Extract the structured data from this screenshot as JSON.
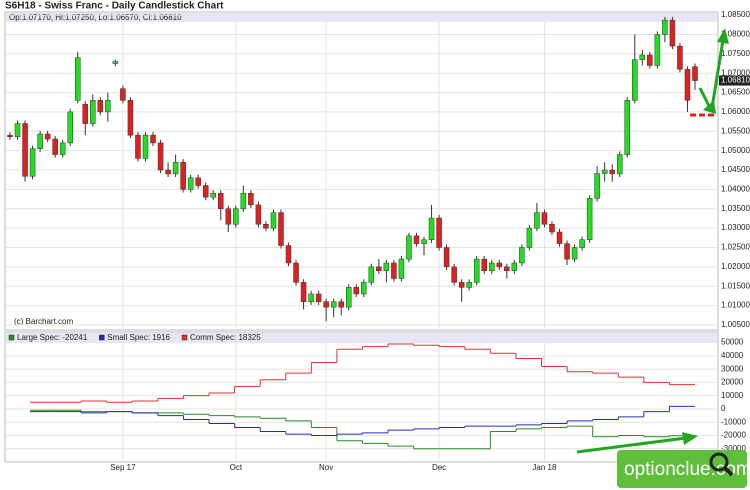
{
  "chart_data": [
    {
      "type": "candlestick",
      "title": "S6H18 - Swiss Franc - Daily Candlestick Chart",
      "header": "Op:1.07170, Hi:1.07250, Lo:1.06570, Cl:1.06810",
      "source": "(c) Barchart.com",
      "categories": [
        null,
        null,
        null,
        null,
        null,
        null,
        null,
        null,
        null,
        null,
        null,
        null,
        null,
        null,
        null,
        "Sep 17",
        null,
        null,
        null,
        null,
        null,
        null,
        null,
        null,
        null,
        null,
        null,
        null,
        null,
        null,
        "Oct",
        null,
        null,
        null,
        null,
        null,
        null,
        null,
        null,
        null,
        null,
        null,
        "Nov",
        null,
        null,
        null,
        null,
        null,
        null,
        null,
        null,
        null,
        null,
        null,
        null,
        null,
        null,
        "Dec",
        null,
        null,
        null,
        null,
        null,
        null,
        null,
        null,
        null,
        null,
        null,
        null,
        null,
        "Jan 18",
        null,
        null,
        null,
        null,
        null,
        null,
        null,
        null,
        null,
        null,
        null,
        null,
        null,
        null,
        null,
        null,
        null,
        null,
        null,
        null
      ],
      "open": [
        1.054,
        1.0536,
        1.057,
        1.0434,
        1.0505,
        1.0543,
        1.053,
        1.049,
        1.052,
        1.063,
        1.062,
        1.057,
        1.063,
        1.06,
        1.0725,
        1.066,
        1.063,
        1.054,
        1.048,
        1.054,
        1.052,
        1.045,
        1.044,
        1.047,
        1.04,
        1.043,
        1.041,
        1.038,
        1.039,
        1.035,
        1.031,
        1.035,
        1.039,
        1.036,
        1.031,
        1.03,
        1.034,
        1.0255,
        1.021,
        1.016,
        1.011,
        1.013,
        1.011,
        1.0096,
        1.011,
        1.0096,
        1.0147,
        1.013,
        1.016,
        1.02,
        1.019,
        1.021,
        1.017,
        1.022,
        1.028,
        1.026,
        1.027,
        1.0326,
        1.025,
        1.02,
        1.016,
        1.0147,
        1.016,
        1.022,
        1.019,
        1.021,
        1.02,
        1.019,
        1.021,
        1.025,
        1.03,
        1.034,
        1.031,
        1.029,
        1.026,
        1.022,
        1.025,
        1.027,
        1.0377,
        1.0441,
        1.045,
        1.044,
        1.049,
        1.063,
        1.0735,
        1.0747,
        1.072,
        1.08,
        1.0837,
        1.077,
        1.071,
        1.0717
      ],
      "high": [
        1.0548,
        1.0578,
        1.0578,
        1.0513,
        1.0551,
        1.0551,
        1.0538,
        1.0528,
        1.0608,
        1.0755,
        1.0628,
        1.0645,
        1.0638,
        1.065,
        1.0735,
        1.0668,
        1.0638,
        1.0548,
        1.0548,
        1.0548,
        1.0528,
        1.047,
        1.049,
        1.0478,
        1.0438,
        1.0438,
        1.0418,
        1.0398,
        1.0398,
        1.0358,
        1.0358,
        1.041,
        1.0398,
        1.0368,
        1.0318,
        1.0348,
        1.0348,
        1.0263,
        1.0218,
        1.0168,
        1.0138,
        1.0138,
        1.0118,
        1.0118,
        1.0118,
        1.0155,
        1.0155,
        1.0168,
        1.0208,
        1.022,
        1.0218,
        1.0218,
        1.0228,
        1.0288,
        1.0288,
        1.0278,
        1.036,
        1.0334,
        1.0258,
        1.0208,
        1.0168,
        1.0168,
        1.0228,
        1.0228,
        1.0218,
        1.0218,
        1.0208,
        1.0218,
        1.0258,
        1.0308,
        1.0365,
        1.0348,
        1.0318,
        1.0298,
        1.0268,
        1.0258,
        1.0278,
        1.0385,
        1.046,
        1.047,
        1.0465,
        1.0498,
        1.0638,
        1.08,
        1.076,
        1.0755,
        1.0808,
        1.0845,
        1.0845,
        1.0778,
        1.0718,
        1.0725
      ],
      "low": [
        1.0528,
        1.0528,
        1.042,
        1.0426,
        1.0497,
        1.0522,
        1.0482,
        1.0482,
        1.0512,
        1.0622,
        1.054,
        1.0562,
        1.0592,
        1.0575,
        1.0718,
        1.0622,
        1.0532,
        1.0472,
        1.0472,
        1.0512,
        1.0442,
        1.0432,
        1.0432,
        1.0392,
        1.0392,
        1.0402,
        1.0372,
        1.0372,
        1.032,
        1.029,
        1.0302,
        1.0342,
        1.0352,
        1.0302,
        1.0292,
        1.0292,
        1.0247,
        1.0202,
        1.0152,
        1.009,
        1.0102,
        1.0102,
        1.006,
        1.007,
        1.0075,
        1.0088,
        1.0122,
        1.0122,
        1.0152,
        1.0182,
        1.016,
        1.0162,
        1.0162,
        1.0212,
        1.0252,
        1.023,
        1.0262,
        1.0242,
        1.0192,
        1.0152,
        1.011,
        1.0139,
        1.0152,
        1.0182,
        1.0182,
        1.0192,
        1.017,
        1.0182,
        1.0202,
        1.0242,
        1.0292,
        1.0302,
        1.0282,
        1.0252,
        1.0205,
        1.0212,
        1.0242,
        1.0262,
        1.0369,
        1.042,
        1.042,
        1.0432,
        1.0482,
        1.0622,
        1.072,
        1.0712,
        1.0712,
        1.078,
        1.0762,
        1.0702,
        1.06,
        1.0657
      ],
      "close": [
        1.0536,
        1.057,
        1.0434,
        1.0505,
        1.0543,
        1.053,
        1.049,
        1.052,
        1.06,
        1.074,
        1.057,
        1.063,
        1.06,
        1.063,
        1.073,
        1.063,
        1.054,
        1.048,
        1.054,
        1.052,
        1.045,
        1.044,
        1.047,
        1.04,
        1.043,
        1.041,
        1.038,
        1.039,
        1.035,
        1.031,
        1.035,
        1.039,
        1.036,
        1.031,
        1.03,
        1.034,
        1.0255,
        1.021,
        1.016,
        1.011,
        1.013,
        1.011,
        1.0096,
        1.011,
        1.0096,
        1.0147,
        1.013,
        1.016,
        1.02,
        1.019,
        1.021,
        1.017,
        1.022,
        1.028,
        1.026,
        1.027,
        1.0326,
        1.025,
        1.02,
        1.016,
        1.0147,
        1.016,
        1.022,
        1.019,
        1.021,
        1.02,
        1.019,
        1.021,
        1.025,
        1.03,
        1.034,
        1.031,
        1.029,
        1.026,
        1.022,
        1.025,
        1.027,
        1.0377,
        1.0441,
        1.045,
        1.044,
        1.049,
        1.063,
        1.0735,
        1.0747,
        1.072,
        1.08,
        1.0837,
        1.077,
        1.071,
        1.063,
        1.0681
      ],
      "up_color": "#22dd22",
      "down_color": "#e02020",
      "ylim": [
        1.0037,
        1.0858
      ],
      "yticks": [
        {
          "value": 1.005,
          "label": "1.00500"
        },
        {
          "value": 1.01,
          "label": "1.01000"
        },
        {
          "value": 1.015,
          "label": "1.01500"
        },
        {
          "value": 1.02,
          "label": "1.02000"
        },
        {
          "value": 1.025,
          "label": "1.02500"
        },
        {
          "value": 1.03,
          "label": "1.03000"
        },
        {
          "value": 1.035,
          "label": "1.03500"
        },
        {
          "value": 1.04,
          "label": "1.04000"
        },
        {
          "value": 1.045,
          "label": "1.04500"
        },
        {
          "value": 1.05,
          "label": "1.05000"
        },
        {
          "value": 1.055,
          "label": "1.05500"
        },
        {
          "value": 1.06,
          "label": "1.06000"
        },
        {
          "value": 1.065,
          "label": "1.06500"
        },
        {
          "value": 1.07,
          "label": "1.07000"
        },
        {
          "value": 1.075,
          "label": "1.07500"
        },
        {
          "value": 1.08,
          "label": "1.08000"
        },
        {
          "value": 1.085,
          "label": "1.08500"
        }
      ],
      "last_price": {
        "value": 1.0681,
        "label": "1.06810"
      },
      "grid": true
    },
    {
      "type": "line",
      "series": [
        {
          "name": "Large Spec: -20241",
          "color": "#2a8a2a",
          "values": [
            -1000,
            -1000,
            -2000,
            -2000,
            -3000,
            -3000,
            -4000,
            -5000,
            -6000,
            -7000,
            -9000,
            -14000,
            -24000,
            -26000,
            -28000,
            -30000,
            -30000,
            -30000,
            -17000,
            -15000,
            -14000,
            -13000,
            -21000,
            -20000,
            -21000,
            -20241
          ]
        },
        {
          "name": "Small Spec: 1916",
          "color": "#2a2ab0",
          "values": [
            -2000,
            -2000,
            -3000,
            -2000,
            -3000,
            -5000,
            -8000,
            -11000,
            -14000,
            -17000,
            -19000,
            -20000,
            -19000,
            -18000,
            -16000,
            -15000,
            -14000,
            -13000,
            -13000,
            -12000,
            -11000,
            -9000,
            -8000,
            -6000,
            -2000,
            1916
          ]
        },
        {
          "name": "Comm Spec: 18325",
          "color": "#e03030",
          "values": [
            5000,
            5000,
            6000,
            5000,
            6000,
            8000,
            10000,
            12000,
            17000,
            22000,
            27000,
            35000,
            45000,
            47000,
            49000,
            48000,
            47000,
            45000,
            42000,
            38000,
            32000,
            28000,
            27000,
            24000,
            20000,
            18325
          ]
        }
      ],
      "ylim": [
        -40000,
        58000
      ],
      "yticks": [
        50000,
        40000,
        30000,
        20000,
        10000,
        0,
        -10000,
        -20000,
        -30000
      ],
      "grid": true
    }
  ],
  "watermark": "optionclue.com"
}
